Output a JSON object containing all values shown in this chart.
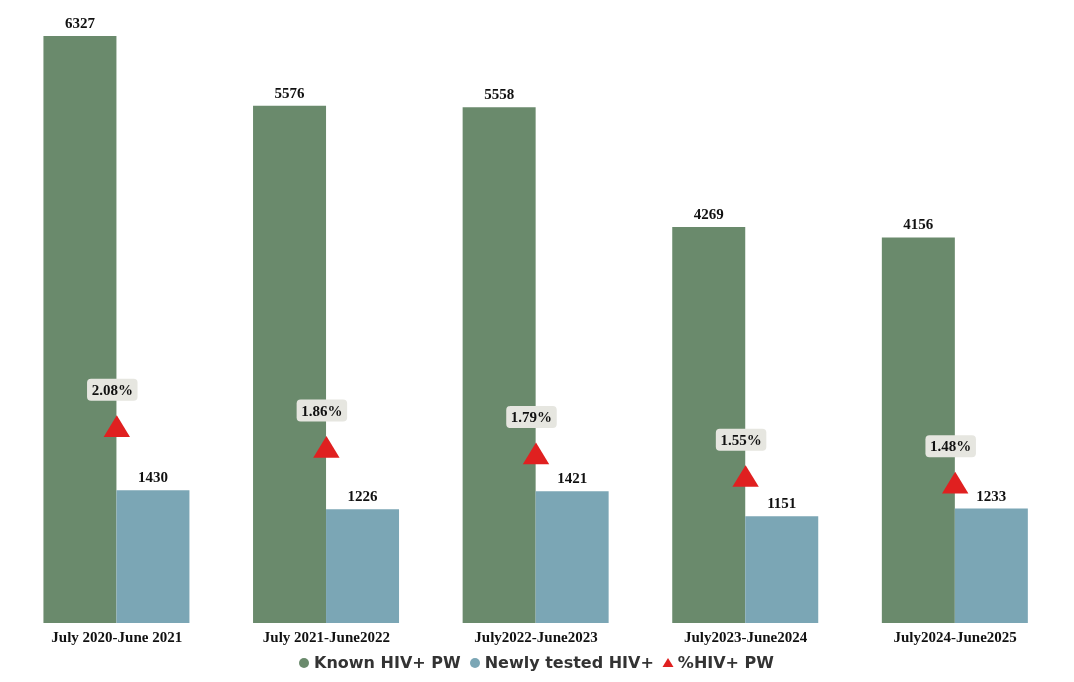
{
  "chart_data": {
    "type": "bar",
    "categories": [
      "July 2020-June 2021",
      "July 2021-June2022",
      "July2022-June2023",
      "July2023-June2024",
      "July2024-June2025"
    ],
    "series": [
      {
        "name": "Known HIV+ PW",
        "color": "#6a8a6c",
        "values": [
          6327,
          5576,
          5558,
          4269,
          4156
        ]
      },
      {
        "name": "Newly tested HIV+",
        "color": "#7ba6b5",
        "values": [
          1430,
          1226,
          1421,
          1151,
          1233
        ]
      },
      {
        "name": "%HIV+ PW",
        "type": "scatter",
        "axis": "y2",
        "marker": "triangle",
        "color": "#e02020",
        "values": [
          2.08,
          1.86,
          1.79,
          1.55,
          1.48
        ],
        "value_labels": [
          "2.08%",
          "1.86%",
          "1.79%",
          "1.55%",
          "1.48%"
        ]
      }
    ],
    "data_labels": true,
    "legend": "bottom",
    "tick_labels": "x"
  }
}
